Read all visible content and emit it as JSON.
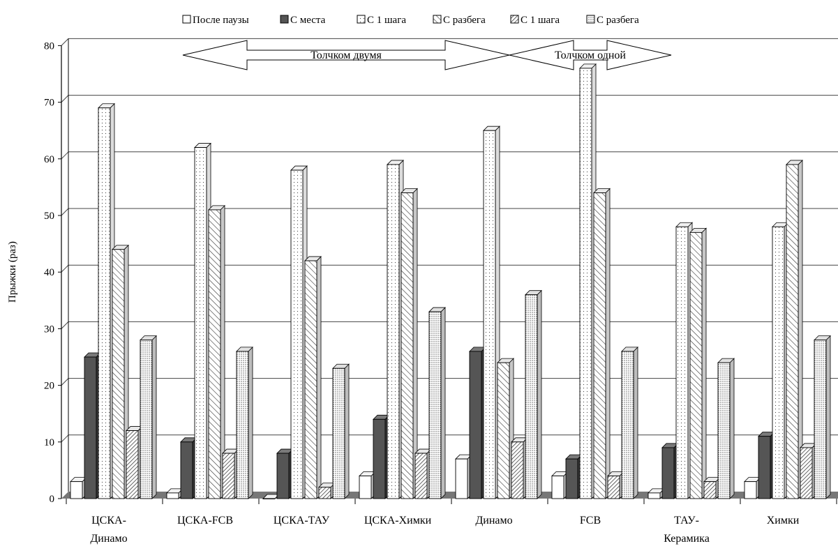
{
  "chart_data": {
    "type": "bar",
    "ylabel": "Прыжки (раз)",
    "ylim": [
      0,
      80
    ],
    "yticks": [
      0,
      10,
      20,
      30,
      40,
      50,
      60,
      70,
      80
    ],
    "grid": true,
    "legend_position": "top",
    "categories": [
      "ЦСКА-Динамо",
      "ЦСКА-FCB",
      "ЦСКА-ТАУ",
      "ЦСКА-Химки",
      "Динамо",
      "FCB",
      "ТАУ-Керамика",
      "Химки"
    ],
    "category_lines": [
      [
        "ЦСКА-",
        "Динамо"
      ],
      [
        "ЦСКА-FCB"
      ],
      [
        "ЦСКА-ТАУ"
      ],
      [
        "ЦСКА-Химки"
      ],
      [
        "Динамо"
      ],
      [
        "FCB"
      ],
      [
        "ТАУ-",
        "Керамика"
      ],
      [
        "Химки"
      ]
    ],
    "series": [
      {
        "name": "После паузы",
        "pattern": "white",
        "values": [
          3,
          1,
          0,
          4,
          7,
          4,
          1,
          3
        ]
      },
      {
        "name": "С места",
        "pattern": "dark",
        "values": [
          25,
          10,
          8,
          14,
          26,
          7,
          9,
          11
        ]
      },
      {
        "name": "С 1 шага",
        "pattern": "dots",
        "values": [
          69,
          62,
          58,
          59,
          65,
          76,
          48,
          48
        ]
      },
      {
        "name": "С разбега",
        "pattern": "diag-fwd",
        "values": [
          44,
          51,
          42,
          54,
          24,
          54,
          47,
          59
        ]
      },
      {
        "name": "С 1 шага",
        "pattern": "diag-back",
        "values": [
          12,
          8,
          2,
          8,
          10,
          4,
          3,
          9
        ]
      },
      {
        "name": "С разбега",
        "pattern": "dense-dots",
        "values": [
          28,
          26,
          23,
          33,
          36,
          26,
          24,
          28
        ]
      }
    ],
    "annotations": [
      {
        "label": "Толчком двумя",
        "start_category": 1,
        "end_category": 4
      },
      {
        "label": "Толчком одной",
        "start_category": 4,
        "end_category": 6
      }
    ],
    "colors": {
      "axis": "#000000",
      "grid": "#444444",
      "floor": "#777777",
      "dark_bar": "#555555"
    }
  }
}
